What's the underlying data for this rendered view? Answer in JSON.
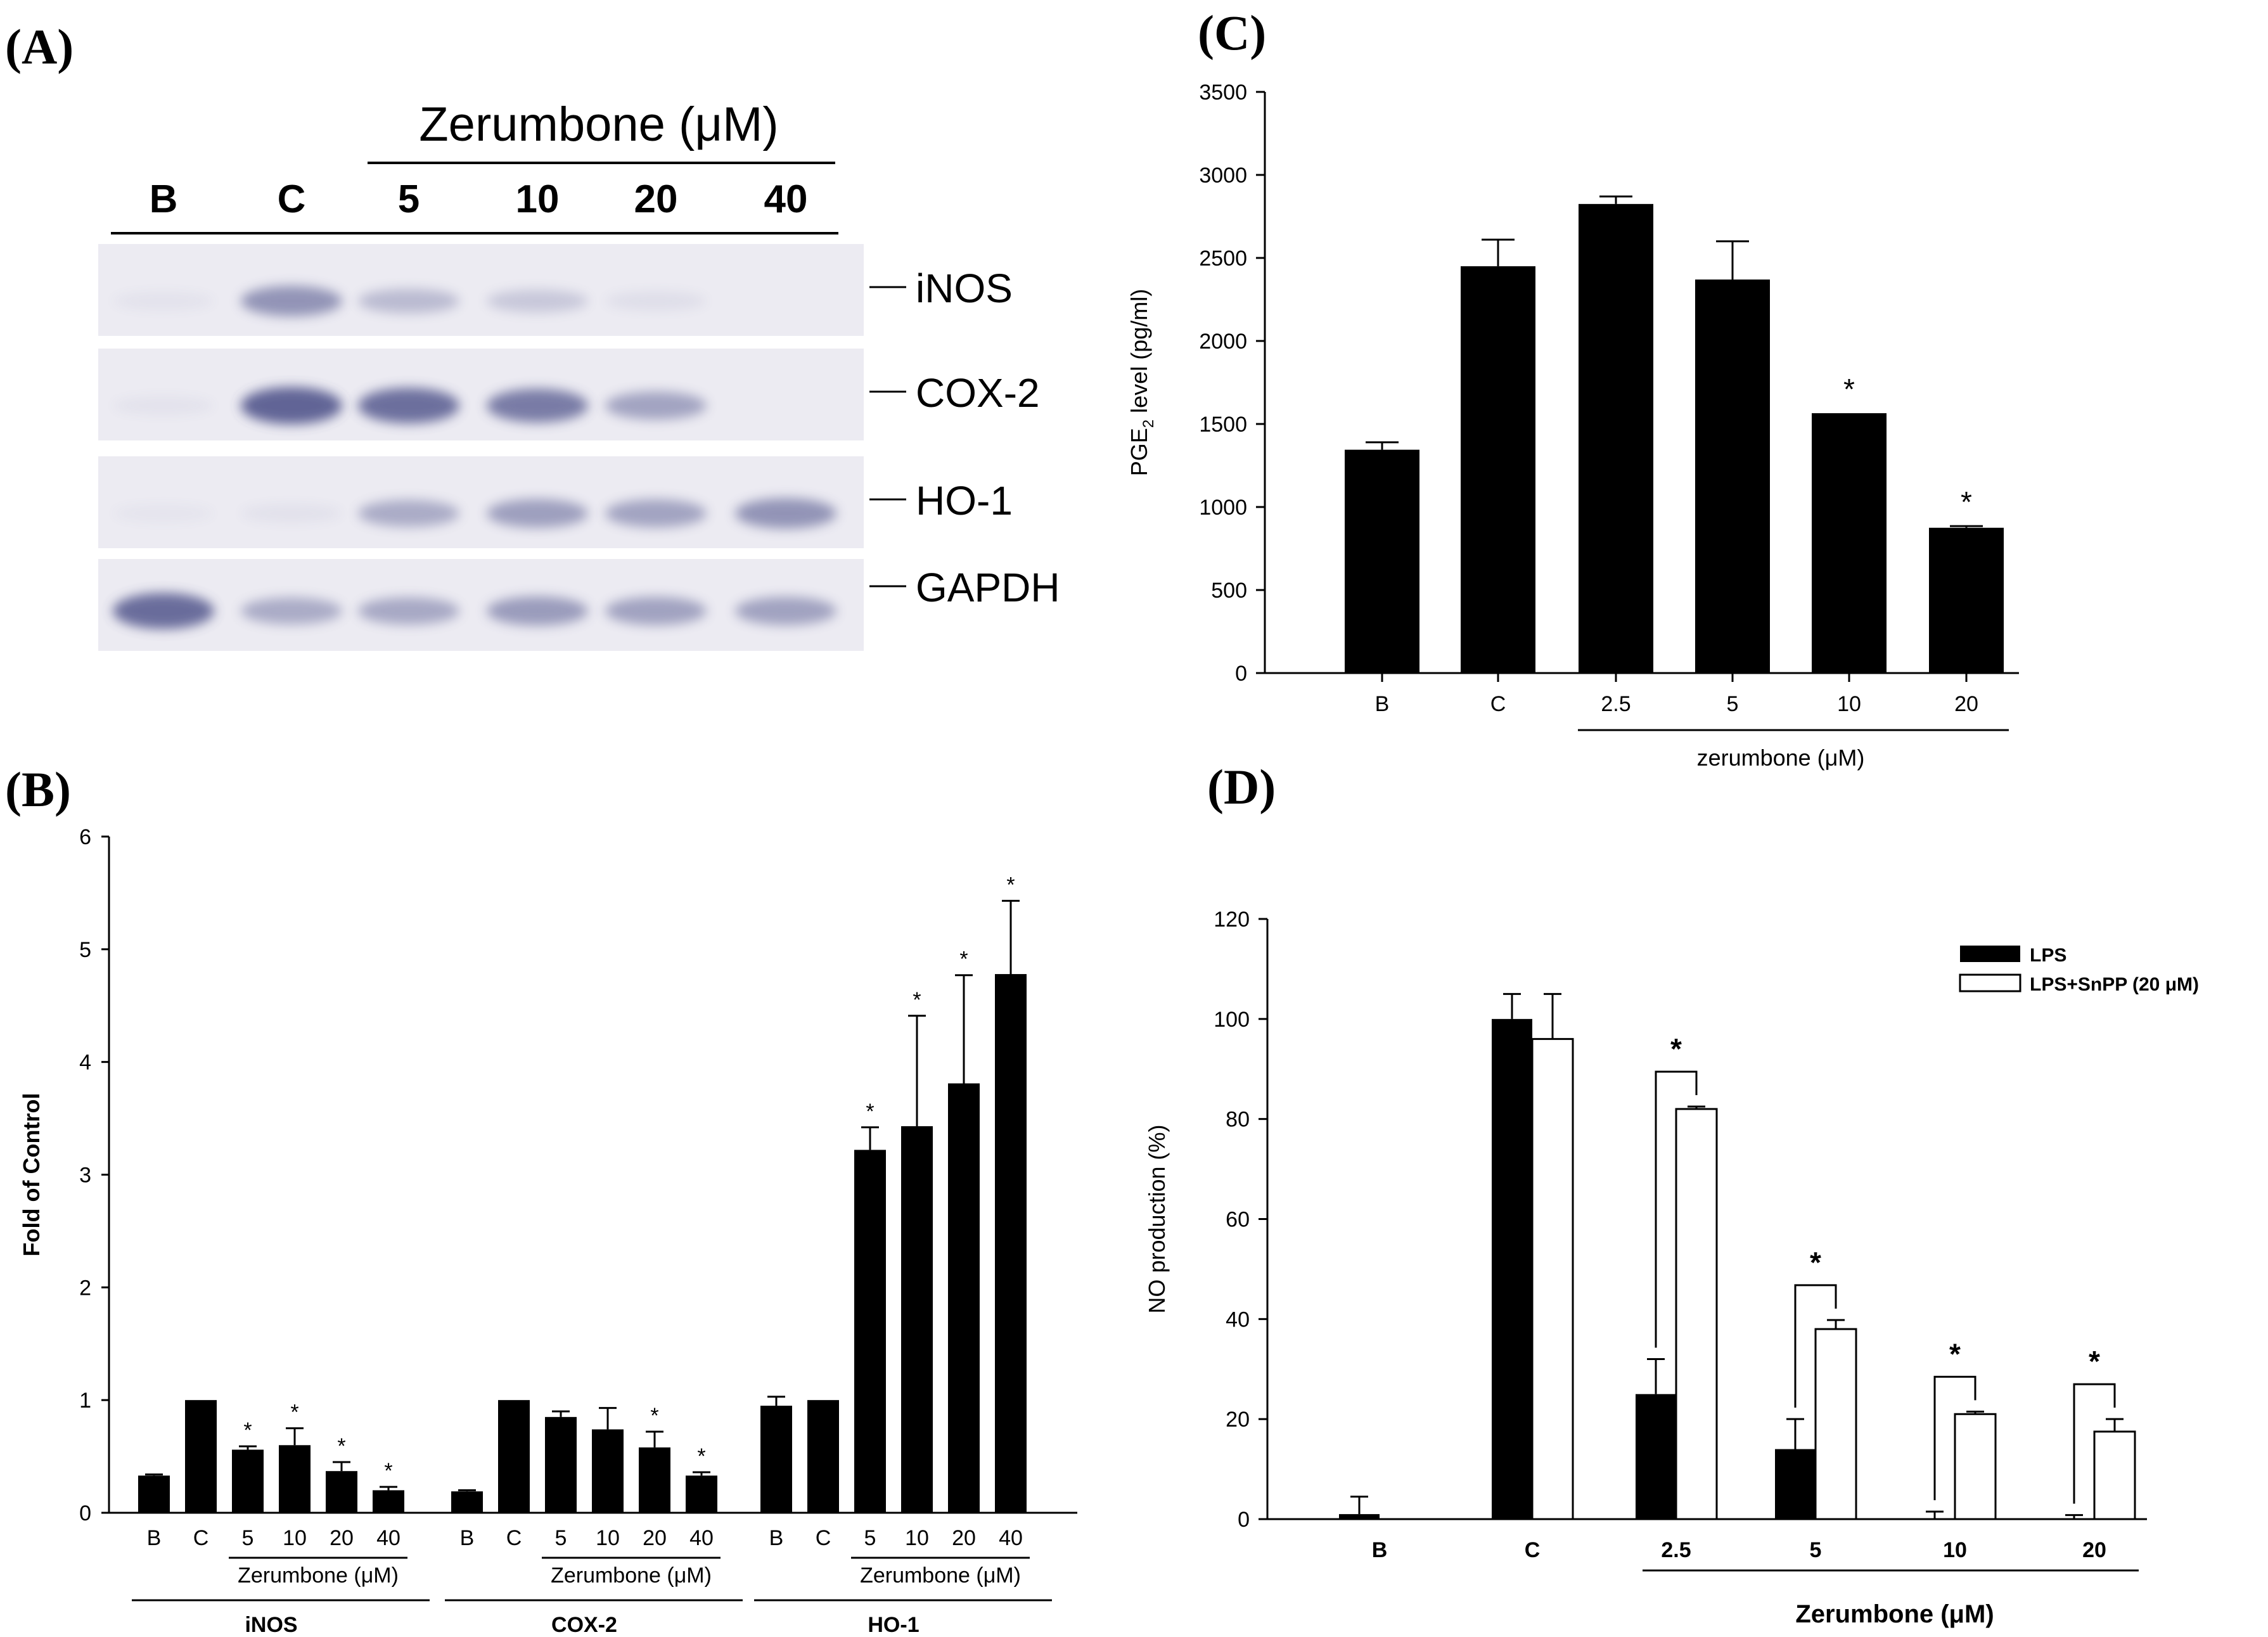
{
  "panels": {
    "a": "(A)",
    "b": "(B)",
    "c": "(C)",
    "d": "(D)"
  },
  "blot": {
    "treatment_label": "Zerumbone (μM)",
    "lanes": [
      "B",
      "C",
      "5",
      "10",
      "20",
      "40"
    ],
    "proteins": [
      "iNOS",
      "COX-2",
      "HO-1",
      "GAPDH"
    ],
    "band_intensity": [
      [
        0.05,
        0.55,
        0.3,
        0.22,
        0.08,
        0.0
      ],
      [
        0.05,
        0.85,
        0.78,
        0.7,
        0.45,
        0.0
      ],
      [
        0.04,
        0.06,
        0.4,
        0.48,
        0.45,
        0.55
      ],
      [
        0.8,
        0.4,
        0.42,
        0.5,
        0.46,
        0.46
      ]
    ],
    "colors": {
      "background": "#ecebf2",
      "band": "#4a4e86"
    }
  },
  "chart_data": [
    {
      "id": "B",
      "type": "bar",
      "ylabel": "Fold of Control",
      "ylim": [
        0,
        6
      ],
      "yticks": [
        "0",
        "1",
        "2",
        "3",
        "4",
        "5",
        "6"
      ],
      "groups": [
        {
          "name": "iNOS",
          "treatment": "Zerumbone (μM)",
          "categories": [
            "B",
            "C",
            "5",
            "10",
            "20",
            "40"
          ],
          "values": [
            0.33,
            1.0,
            0.56,
            0.6,
            0.37,
            0.2
          ],
          "errors": [
            0.01,
            0.0,
            0.03,
            0.15,
            0.08,
            0.03
          ],
          "significant": [
            false,
            false,
            true,
            true,
            true,
            true
          ]
        },
        {
          "name": "COX-2",
          "treatment": "Zerumbone (μM)",
          "categories": [
            "B",
            "C",
            "5",
            "10",
            "20",
            "40"
          ],
          "values": [
            0.19,
            1.0,
            0.85,
            0.74,
            0.58,
            0.33
          ],
          "errors": [
            0.01,
            0.0,
            0.05,
            0.19,
            0.14,
            0.03
          ],
          "significant": [
            false,
            false,
            false,
            false,
            true,
            true
          ]
        },
        {
          "name": "HO-1",
          "treatment": "Zerumbone (μM)",
          "categories": [
            "B",
            "C",
            "5",
            "10",
            "20",
            "40"
          ],
          "values": [
            0.95,
            1.0,
            3.22,
            3.43,
            3.81,
            4.78
          ],
          "errors": [
            0.08,
            0.0,
            0.2,
            0.98,
            0.96,
            0.65
          ],
          "significant": [
            false,
            false,
            true,
            true,
            true,
            true
          ]
        }
      ],
      "significance_marker": "*"
    },
    {
      "id": "C",
      "type": "bar",
      "ylabel_prefix": "PGE",
      "ylabel_sub": "2",
      "ylabel_suffix": " level (pg/ml)",
      "xlabel": "zerumbone (μM)",
      "ylim": [
        0,
        3500
      ],
      "yticks": [
        "0",
        "500",
        "1000",
        "1500",
        "2000",
        "2500",
        "3000",
        "3500"
      ],
      "categories": [
        "B",
        "C",
        "2.5",
        "5",
        "10",
        "20"
      ],
      "values": [
        1345,
        2450,
        2825,
        2370,
        1565,
        875
      ],
      "errors": [
        45,
        160,
        45,
        230,
        0,
        10
      ],
      "significant": [
        false,
        false,
        false,
        false,
        true,
        true
      ],
      "significance_marker": "*"
    },
    {
      "id": "D",
      "type": "bar",
      "ylabel": "NO production (%)",
      "xlabel": "Zerumbone (μM)",
      "ylim": [
        0,
        120
      ],
      "yticks": [
        "0",
        "20",
        "40",
        "60",
        "80",
        "100",
        "120"
      ],
      "categories": [
        "B",
        "C",
        "2.5",
        "5",
        "10",
        "20"
      ],
      "series": [
        {
          "name": "LPS",
          "values": [
            1,
            100,
            25,
            14,
            0,
            0
          ],
          "errors": [
            3.5,
            5,
            7,
            6,
            1.5,
            0.8
          ]
        },
        {
          "name": "LPS+SnPP (20 μM)",
          "values": [
            null,
            96,
            82,
            38,
            21,
            17.5
          ],
          "errors": [
            null,
            9,
            0.5,
            1.8,
            0.5,
            2.5
          ]
        }
      ],
      "legend_position": "top-right",
      "significant": [
        false,
        false,
        true,
        true,
        true,
        true
      ],
      "significance_marker": "*"
    }
  ]
}
